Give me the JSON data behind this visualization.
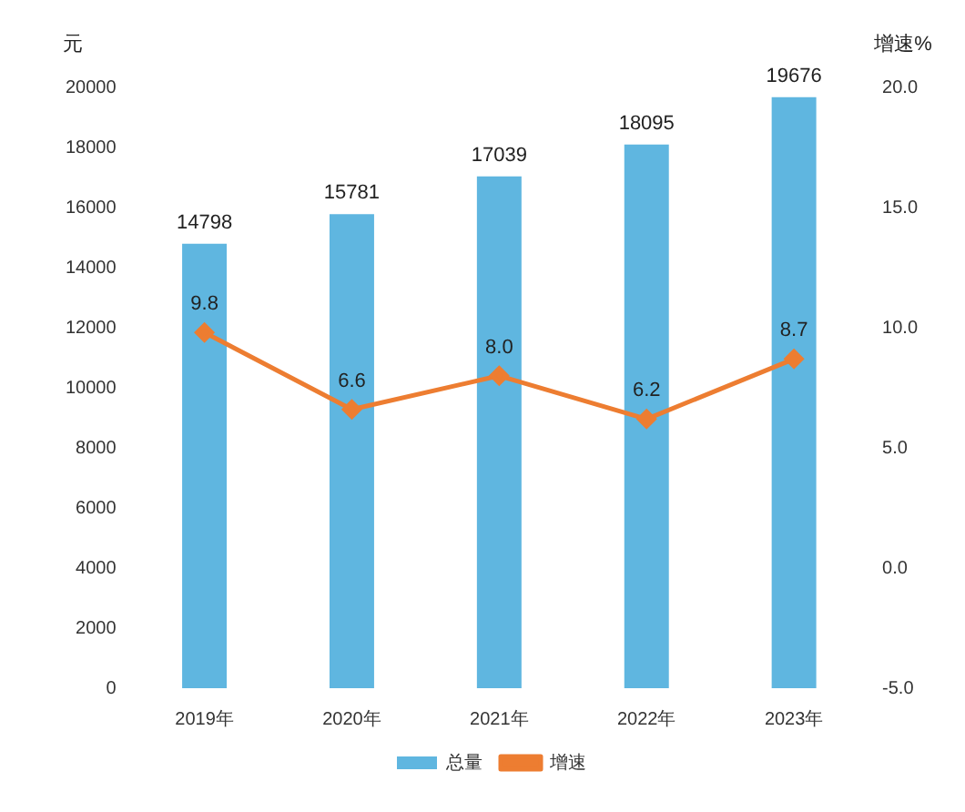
{
  "chart_data": {
    "type": "bar",
    "categories": [
      "2019年",
      "2020年",
      "2021年",
      "2022年",
      "2023年"
    ],
    "series": [
      {
        "name": "总量",
        "color": "#5fb6e0",
        "values": [
          14798,
          15781,
          17039,
          18095,
          19676
        ],
        "value_labels": [
          "14798",
          "15781",
          "17039",
          "18095",
          "19676"
        ]
      },
      {
        "name": "增速",
        "type": "line",
        "axis": "y2",
        "color": "#ed7d31",
        "values": [
          9.8,
          6.6,
          8.0,
          6.2,
          8.7
        ],
        "value_labels": [
          "9.8",
          "6.6",
          "8.0",
          "6.2",
          "8.7"
        ]
      }
    ],
    "ylabel": "元",
    "y2label": "增速%",
    "ylim": [
      0,
      20000
    ],
    "yticks": [
      0,
      2000,
      4000,
      6000,
      8000,
      10000,
      12000,
      14000,
      16000,
      18000,
      20000
    ],
    "y2lim": [
      -5,
      20
    ],
    "y2ticks": [
      {
        "value": -5,
        "label": "-5.0"
      },
      {
        "value": 0,
        "label": "0.0"
      },
      {
        "value": 5,
        "label": "5.0"
      },
      {
        "value": 10,
        "label": "10.0"
      },
      {
        "value": 15,
        "label": "15.0"
      },
      {
        "value": 20,
        "label": "20.0"
      }
    ],
    "legend": "bottom",
    "grid": false,
    "marker": "diamond",
    "line_style": "solid"
  }
}
